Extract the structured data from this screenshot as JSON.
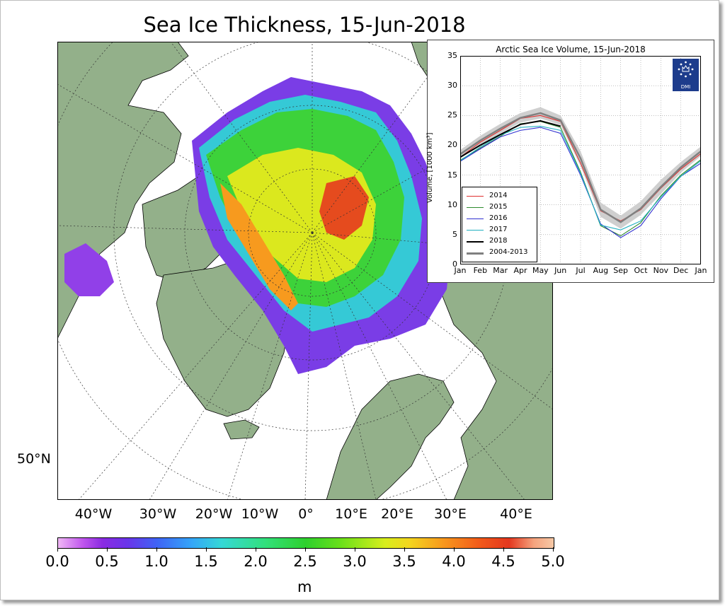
{
  "title": "Sea Ice Thickness, 15-Jun-2018",
  "map": {
    "lon_labels": [
      "40°W",
      "30°W",
      "20°W",
      "10°W",
      "0°",
      "10°E",
      "20°E",
      "30°E",
      "40°E"
    ],
    "lat_label": "50°N",
    "colors": {
      "land": "#93b08a",
      "ocean": "#ffffff",
      "coast": "#000000"
    }
  },
  "colorbar": {
    "ticks": [
      "0.0",
      "0.5",
      "1.0",
      "1.5",
      "2.0",
      "2.5",
      "3.0",
      "3.5",
      "4.0",
      "4.5",
      "5.0"
    ],
    "unit": "m",
    "min": 0.0,
    "max": 5.0
  },
  "inset": {
    "logo_text": "DMI",
    "chart_data": {
      "type": "line",
      "title": "Arctic Sea Ice Volume, 15-Jun-2018",
      "ylabel": "Volume, [1000 km³]",
      "xlabel": "",
      "ylim": [
        0,
        35
      ],
      "yticks": [
        "0",
        "5",
        "10",
        "15",
        "20",
        "25",
        "30",
        "35"
      ],
      "xticks": [
        "Jan",
        "Feb",
        "Mar",
        "Apr",
        "May",
        "Jun",
        "Jul",
        "Aug",
        "Sep",
        "Oct",
        "Nov",
        "Dec",
        "Jan"
      ],
      "grid": true,
      "legend_position": "lower-left",
      "x": [
        0,
        1,
        2,
        3,
        4,
        5,
        6,
        7,
        8,
        9,
        10,
        11,
        12
      ],
      "band": {
        "name": "2004-2013",
        "lower": [
          17.8,
          20.0,
          22.0,
          23.8,
          24.5,
          23.4,
          16.5,
          8.0,
          6.0,
          8.3,
          11.8,
          15.4,
          18.2
        ],
        "upper": [
          19.2,
          21.6,
          23.6,
          25.4,
          26.4,
          25.0,
          19.0,
          10.4,
          8.2,
          10.6,
          14.2,
          17.2,
          19.8
        ]
      },
      "series": [
        {
          "name": "2014",
          "color": "#e03030",
          "values": [
            18.0,
            20.5,
            22.5,
            24.5,
            25.0,
            24.0,
            17.0,
            9.0,
            7.3,
            9.2,
            12.8,
            16.0,
            18.6
          ]
        },
        {
          "name": "2015",
          "color": "#2e8b2e",
          "values": [
            17.5,
            19.5,
            21.5,
            23.6,
            24.0,
            23.0,
            15.5,
            6.5,
            4.8,
            7.0,
            11.5,
            15.0,
            17.6
          ]
        },
        {
          "name": "2016",
          "color": "#3030d0",
          "values": [
            17.3,
            19.4,
            21.4,
            22.5,
            23.0,
            22.0,
            15.0,
            6.8,
            4.5,
            6.5,
            11.0,
            14.8,
            17.0
          ]
        },
        {
          "name": "2017",
          "color": "#20b0c0",
          "values": [
            17.4,
            19.7,
            21.7,
            23.0,
            23.2,
            22.5,
            15.3,
            6.6,
            5.8,
            7.3,
            11.3,
            14.8,
            17.4
          ]
        },
        {
          "name": "2018",
          "color": "#000000",
          "values": [
            18.0,
            20.0,
            21.8,
            23.5,
            24.1,
            23.2,
            null,
            null,
            null,
            null,
            null,
            null,
            null
          ]
        },
        {
          "name": "2004-2013",
          "color": "#808080",
          "values": [
            18.5,
            20.8,
            22.8,
            24.6,
            25.4,
            24.2,
            17.8,
            9.2,
            7.1,
            9.4,
            13.0,
            16.3,
            19.0
          ]
        }
      ]
    }
  }
}
